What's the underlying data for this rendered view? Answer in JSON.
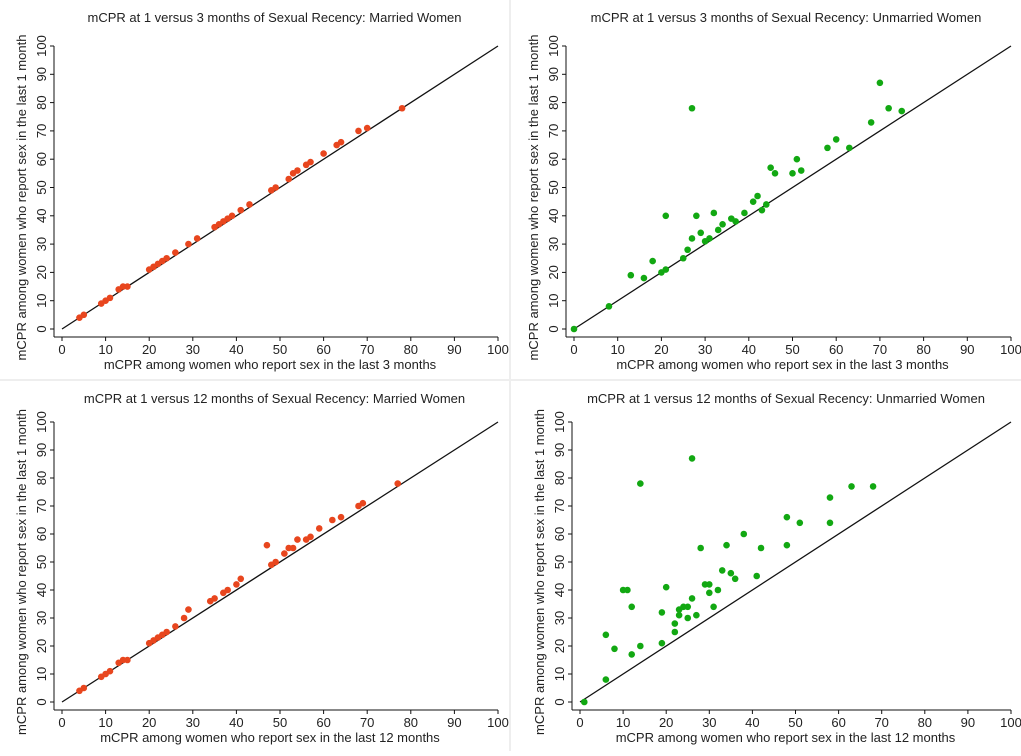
{
  "colors": {
    "married_points": "#e8461e",
    "unmarried_points": "#12a812",
    "diagonal": "#111111",
    "axis": "#111111",
    "background": "#ffffff"
  },
  "chart_data": [
    {
      "type": "scatter",
      "title": "mCPR at 1 versus 3 months of Sexual Recency: Married Women",
      "xlabel": "mCPR among women who report sex in the last 3 months",
      "ylabel": "mCPR among women who report sex in the last 1 month",
      "xlim": [
        0,
        100
      ],
      "ylim": [
        0,
        100
      ],
      "xticks": [
        "0",
        "10",
        "20",
        "30",
        "40",
        "50",
        "60",
        "70",
        "80",
        "90",
        "100"
      ],
      "yticks": [
        "0",
        "10",
        "20",
        "30",
        "40",
        "50",
        "60",
        "70",
        "80",
        "90",
        "100"
      ],
      "grid": false,
      "reference_line": "y = x",
      "point_color": "#e8461e",
      "series": [
        {
          "x": [
            4,
            5,
            9,
            10,
            11,
            13,
            14,
            15,
            20,
            21,
            22,
            23,
            24,
            26,
            29,
            31,
            35,
            36,
            37,
            38,
            39,
            41,
            43,
            48,
            49,
            52,
            53,
            54,
            56,
            57,
            60,
            63,
            64,
            68,
            70,
            78
          ],
          "y": [
            4,
            5,
            9,
            10,
            11,
            14,
            15,
            15,
            21,
            22,
            23,
            24,
            25,
            27,
            30,
            32,
            36,
            37,
            38,
            39,
            40,
            42,
            44,
            49,
            50,
            53,
            55,
            56,
            58,
            59,
            62,
            65,
            66,
            70,
            71,
            78
          ]
        }
      ]
    },
    {
      "type": "scatter",
      "title": "mCPR at 1 versus 3 months of Sexual Recency: Unmarried Women",
      "xlabel": "mCPR among women who report sex in the last 3 months",
      "ylabel": "mCPR among women who report sex in the last 1 month",
      "xlim": [
        0,
        100
      ],
      "ylim": [
        0,
        100
      ],
      "xticks": [
        "0",
        "10",
        "20",
        "30",
        "40",
        "50",
        "60",
        "70",
        "80",
        "90",
        "100"
      ],
      "yticks": [
        "0",
        "10",
        "20",
        "30",
        "40",
        "50",
        "60",
        "70",
        "80",
        "90",
        "100"
      ],
      "grid": false,
      "reference_line": "y = x",
      "point_color": "#12a812",
      "series": [
        {
          "x": [
            0,
            8,
            13,
            16,
            18,
            20,
            21,
            21,
            25,
            26,
            27,
            27,
            28,
            29,
            30,
            31,
            32,
            33,
            34,
            36,
            37,
            39,
            41,
            42,
            43,
            44,
            45,
            46,
            50,
            51,
            52,
            58,
            60,
            63,
            68,
            70,
            72,
            75
          ],
          "y": [
            0,
            8,
            19,
            18,
            24,
            20,
            21,
            40,
            25,
            28,
            32,
            78,
            40,
            34,
            31,
            32,
            41,
            35,
            37,
            39,
            38,
            41,
            45,
            47,
            42,
            44,
            57,
            55,
            55,
            60,
            56,
            64,
            67,
            64,
            73,
            87,
            78,
            77
          ]
        }
      ]
    },
    {
      "type": "scatter",
      "title": "mCPR at 1 versus 12 months of Sexual Recency: Married Women",
      "xlabel": "mCPR among women who report sex in the last 12 months",
      "ylabel": "mCPR among women who report sex in the last 1 month",
      "xlim": [
        0,
        100
      ],
      "ylim": [
        0,
        100
      ],
      "xticks": [
        "0",
        "10",
        "20",
        "30",
        "40",
        "50",
        "60",
        "70",
        "80",
        "90",
        "100"
      ],
      "yticks": [
        "0",
        "10",
        "20",
        "30",
        "40",
        "50",
        "60",
        "70",
        "80",
        "90",
        "100"
      ],
      "grid": false,
      "reference_line": "y = x",
      "point_color": "#e8461e",
      "series": [
        {
          "x": [
            4,
            5,
            9,
            10,
            11,
            13,
            14,
            15,
            20,
            21,
            22,
            23,
            24,
            26,
            28,
            29,
            34,
            35,
            37,
            38,
            40,
            41,
            47,
            48,
            49,
            51,
            52,
            53,
            54,
            56,
            57,
            59,
            62,
            64,
            68,
            69,
            77
          ],
          "y": [
            4,
            5,
            9,
            10,
            11,
            14,
            15,
            15,
            21,
            22,
            23,
            24,
            25,
            27,
            30,
            33,
            36,
            37,
            39,
            40,
            42,
            44,
            56,
            49,
            50,
            53,
            55,
            55,
            58,
            58,
            59,
            62,
            65,
            66,
            70,
            71,
            78
          ]
        }
      ]
    },
    {
      "type": "scatter",
      "title": "mCPR at 1 versus 12 months of Sexual Recency: Unmarried Women",
      "xlabel": "mCPR among women who report sex in the last 12 months",
      "ylabel": "mCPR among women who report sex in the last 1 month",
      "xlim": [
        0,
        100
      ],
      "ylim": [
        0,
        100
      ],
      "xticks": [
        "0",
        "10",
        "20",
        "30",
        "40",
        "50",
        "60",
        "70",
        "80",
        "90",
        "100"
      ],
      "yticks": [
        "0",
        "10",
        "20",
        "30",
        "40",
        "50",
        "60",
        "70",
        "80",
        "90",
        "100"
      ],
      "grid": false,
      "reference_line": "y = x",
      "point_color": "#12a812",
      "series": [
        {
          "x": [
            1,
            6,
            6,
            8,
            10,
            11,
            12,
            12,
            14,
            14,
            19,
            19,
            20,
            22,
            22,
            23,
            23,
            24,
            25,
            25,
            26,
            26,
            27,
            28,
            29,
            30,
            30,
            31,
            32,
            33,
            34,
            35,
            36,
            38,
            41,
            42,
            48,
            48,
            51,
            58,
            58,
            63,
            68
          ],
          "y": [
            0,
            8,
            24,
            19,
            40,
            40,
            17,
            34,
            20,
            78,
            21,
            32,
            41,
            25,
            28,
            33,
            31,
            34,
            30,
            34,
            87,
            37,
            31,
            55,
            42,
            39,
            42,
            34,
            40,
            47,
            56,
            46,
            44,
            60,
            45,
            55,
            66,
            56,
            64,
            73,
            64,
            77,
            77
          ]
        }
      ]
    }
  ]
}
